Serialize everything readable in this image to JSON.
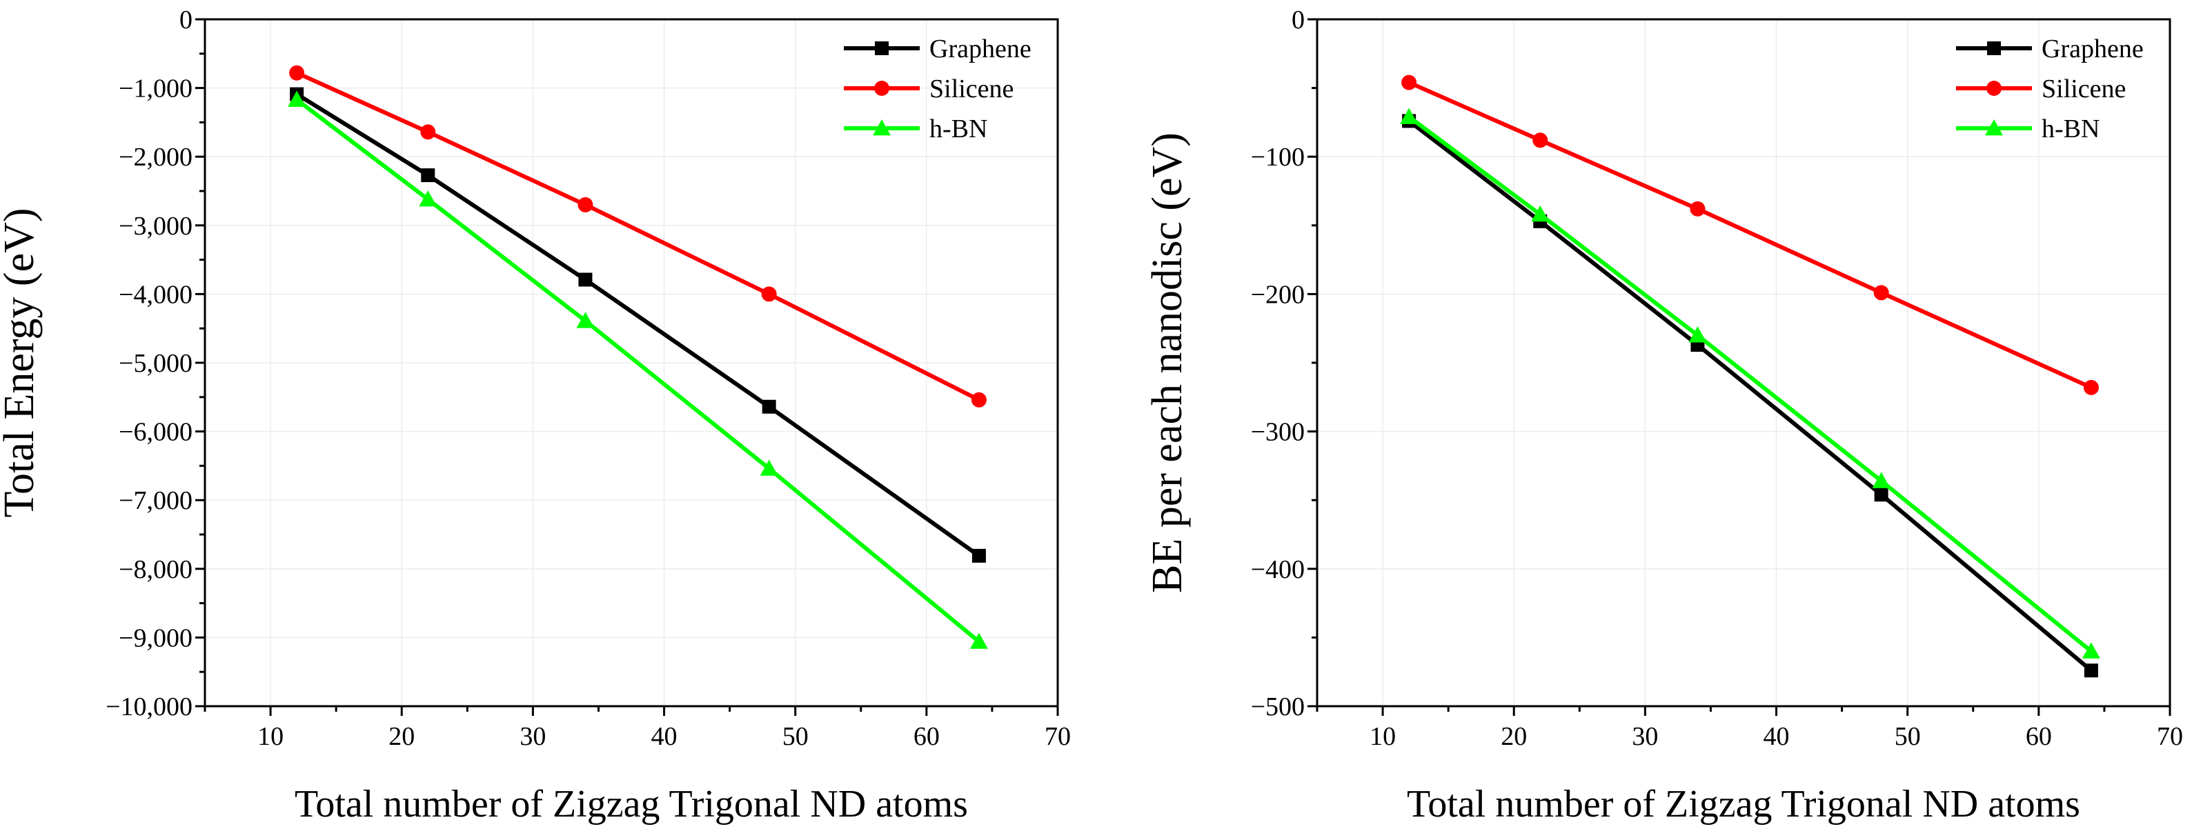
{
  "chart_data": [
    {
      "type": "line",
      "x": [
        12,
        22,
        34,
        48,
        64
      ],
      "series": [
        {
          "name": "Graphene",
          "color": "#000000",
          "marker": "square",
          "values": [
            -1090,
            -2270,
            -3790,
            -5640,
            -7810
          ]
        },
        {
          "name": "Silicene",
          "color": "#ff0000",
          "marker": "circle",
          "values": [
            -780,
            -1640,
            -2700,
            -4000,
            -5540
          ]
        },
        {
          "name": "h-BN",
          "color": "#00ff00",
          "marker": "triangle",
          "values": [
            -1170,
            -2620,
            -4390,
            -6540,
            -9060
          ]
        }
      ],
      "xlabel": "Total number of Zigzag Trigonal ND atoms",
      "ylabel": "Total Energy (eV)",
      "xlim": [
        5,
        70
      ],
      "ylim": [
        -10000,
        0
      ],
      "xticks": [
        10,
        20,
        30,
        40,
        50,
        60,
        70
      ],
      "yticks": [
        0,
        -1000,
        -2000,
        -3000,
        -4000,
        -5000,
        -6000,
        -7000,
        -8000,
        -9000,
        -10000
      ],
      "xtick_labels": [
        "10",
        "20",
        "30",
        "40",
        "50",
        "60",
        "70"
      ],
      "ytick_labels": [
        "0",
        "−1,000",
        "−2,000",
        "−3,000",
        "−4,000",
        "−5,000",
        "−6,000",
        "−7,000",
        "−8,000",
        "−9,000",
        "−10,000"
      ],
      "grid": true,
      "legend": "top-right"
    },
    {
      "type": "line",
      "x": [
        12,
        22,
        34,
        48,
        64
      ],
      "series": [
        {
          "name": "Graphene",
          "color": "#000000",
          "marker": "square",
          "values": [
            -74,
            -147,
            -237,
            -346,
            -474
          ]
        },
        {
          "name": "Silicene",
          "color": "#ff0000",
          "marker": "circle",
          "values": [
            -46,
            -88,
            -138,
            -199,
            -268
          ]
        },
        {
          "name": "h-BN",
          "color": "#00ff00",
          "marker": "triangle",
          "values": [
            -71,
            -142,
            -230,
            -336,
            -460
          ]
        }
      ],
      "xlabel": "Total number of Zigzag Trigonal ND atoms",
      "ylabel": "BE per each nanodisc (eV)",
      "xlim": [
        5,
        70
      ],
      "ylim": [
        -500,
        0
      ],
      "xticks": [
        10,
        20,
        30,
        40,
        50,
        60,
        70
      ],
      "yticks": [
        0,
        -100,
        -200,
        -300,
        -400,
        -500
      ],
      "xtick_labels": [
        "10",
        "20",
        "30",
        "40",
        "50",
        "60",
        "70"
      ],
      "ytick_labels": [
        "0",
        "−100",
        "−200",
        "−300",
        "−400",
        "−500"
      ],
      "grid": true,
      "legend": "top-right"
    }
  ]
}
